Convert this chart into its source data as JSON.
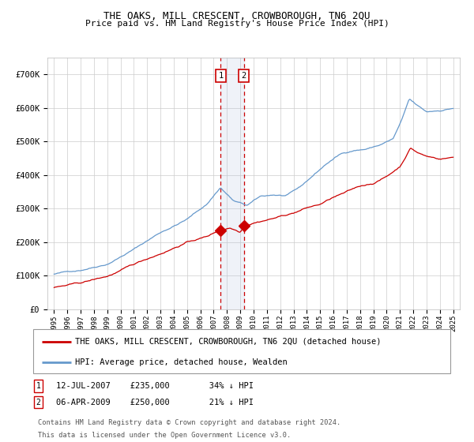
{
  "title": "THE OAKS, MILL CRESCENT, CROWBOROUGH, TN6 2QU",
  "subtitle": "Price paid vs. HM Land Registry's House Price Index (HPI)",
  "legend_line1": "THE OAKS, MILL CRESCENT, CROWBOROUGH, TN6 2QU (detached house)",
  "legend_line2": "HPI: Average price, detached house, Wealden",
  "footnote_line1": "Contains HM Land Registry data © Crown copyright and database right 2024.",
  "footnote_line2": "This data is licensed under the Open Government Licence v3.0.",
  "sale1_date": "12-JUL-2007",
  "sale1_price": "£235,000",
  "sale1_label": "34% ↓ HPI",
  "sale2_date": "06-APR-2009",
  "sale2_price": "£250,000",
  "sale2_label": "21% ↓ HPI",
  "sale1_x": 2007.53,
  "sale2_x": 2009.26,
  "sale1_y": 235000,
  "sale2_y": 250000,
  "hpi_color": "#6699cc",
  "price_color": "#cc0000",
  "plot_bg_color": "#ffffff",
  "grid_color": "#cccccc",
  "ylim": [
    0,
    750000
  ],
  "xlim": [
    1994.5,
    2025.5
  ],
  "yticks": [
    0,
    100000,
    200000,
    300000,
    400000,
    500000,
    600000,
    700000
  ],
  "x_years": [
    1995,
    1996,
    1997,
    1998,
    1999,
    2000,
    2001,
    2002,
    2003,
    2004,
    2005,
    2006,
    2007,
    2008,
    2009,
    2010,
    2011,
    2012,
    2013,
    2014,
    2015,
    2016,
    2017,
    2018,
    2019,
    2020,
    2021,
    2022,
    2023,
    2024,
    2025
  ]
}
